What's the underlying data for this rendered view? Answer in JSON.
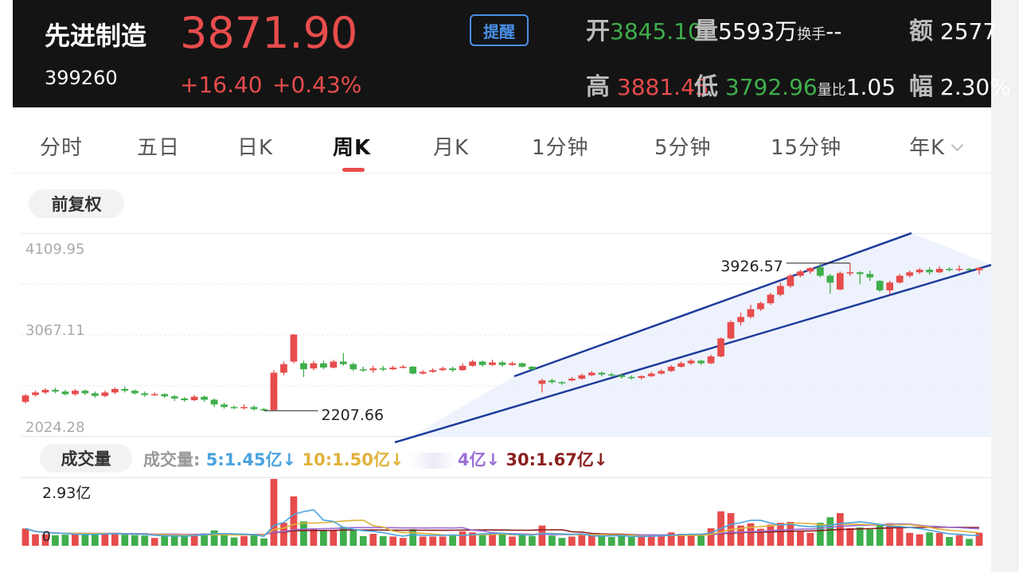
{
  "header": {
    "name": "先进制造",
    "code": "399260",
    "price": "3871.90",
    "change": "+16.40",
    "change_pct": "+0.43%",
    "alert_label": "提醒",
    "stats": {
      "open_label": "开",
      "open": "3845.10",
      "volume_label": "量",
      "volume": "5593万",
      "turnover_label": "换手",
      "turnover": "--",
      "amount_label": "额",
      "amount": "2577",
      "high_label": "高",
      "high": "3881.45",
      "low_label": "低",
      "low": "3792.96",
      "vol_ratio_label": "量比",
      "vol_ratio": "1.05",
      "amplitude_label": "幅",
      "amplitude": "2.30%"
    }
  },
  "tabs": [
    {
      "label": "分时"
    },
    {
      "label": "五日"
    },
    {
      "label": "日K"
    },
    {
      "label": "周K",
      "active": true
    },
    {
      "label": "月K"
    },
    {
      "label": "1分钟"
    },
    {
      "label": "5分钟"
    },
    {
      "label": "15分钟"
    },
    {
      "label": "年K"
    }
  ],
  "adjust_label": "前复权",
  "chart": {
    "y_max_label": "4109.95",
    "y_mid_label": "3067.11",
    "y_min_label": "2024.28",
    "high_marker": "3926.57",
    "low_marker": "2207.66"
  },
  "volume": {
    "pill_label": "成交量",
    "legend_prefix": "成交量:",
    "ma5": "5:1.45亿",
    "ma10": "10:1.50亿",
    "ma20_partial": "4亿",
    "ma30": "30:1.67亿",
    "arrow": "↓",
    "max_label": "2.93亿",
    "zero_label": "0"
  },
  "colors": {
    "up": "#e74c4c",
    "down": "#3fae4c",
    "ma5": "#4aa3df",
    "ma10": "#e0b23a",
    "ma20": "#9b6fd6",
    "ma30": "#8b1e1e",
    "channel": "#1f3c9c"
  },
  "chart_data": {
    "type": "candlestick",
    "title": "",
    "ylim": [
      2024.28,
      4109.95
    ],
    "y_ticks": [
      4109.95,
      3067.11,
      2024.28
    ],
    "annotations": [
      {
        "label": "3926.57",
        "value": 3926.57,
        "type": "high"
      },
      {
        "label": "2207.66",
        "value": 2207.66,
        "type": "low"
      }
    ],
    "series": [
      {
        "ohlc": [
          [
            2310,
            2385,
            2290,
            2400
          ],
          [
            2390,
            2420,
            2370,
            2440
          ],
          [
            2420,
            2450,
            2400,
            2470
          ],
          [
            2450,
            2430,
            2410,
            2475
          ],
          [
            2430,
            2400,
            2385,
            2450
          ],
          [
            2400,
            2440,
            2380,
            2460
          ],
          [
            2440,
            2410,
            2390,
            2455
          ],
          [
            2410,
            2380,
            2360,
            2430
          ],
          [
            2380,
            2420,
            2365,
            2440
          ],
          [
            2420,
            2460,
            2400,
            2480
          ],
          [
            2460,
            2440,
            2420,
            2490
          ],
          [
            2440,
            2410,
            2395,
            2455
          ],
          [
            2410,
            2390,
            2370,
            2430
          ],
          [
            2390,
            2400,
            2380,
            2420
          ],
          [
            2400,
            2375,
            2355,
            2410
          ],
          [
            2375,
            2350,
            2320,
            2390
          ],
          [
            2350,
            2330,
            2310,
            2365
          ],
          [
            2330,
            2370,
            2320,
            2390
          ],
          [
            2370,
            2335,
            2310,
            2385
          ],
          [
            2335,
            2280,
            2250,
            2350
          ],
          [
            2280,
            2250,
            2230,
            2300
          ],
          [
            2250,
            2240,
            2225,
            2270
          ],
          [
            2240,
            2250,
            2220,
            2280
          ],
          [
            2250,
            2225,
            2210,
            2270
          ],
          [
            2225,
            2210,
            2207.66,
            2240
          ],
          [
            2215,
            2650,
            2210,
            2680
          ],
          [
            2650,
            2750,
            2620,
            2780
          ],
          [
            2780,
            3095,
            2760,
            3100
          ],
          [
            2760,
            2690,
            2600,
            2790
          ],
          [
            2700,
            2760,
            2680,
            2790
          ],
          [
            2760,
            2710,
            2690,
            2790
          ],
          [
            2710,
            2780,
            2700,
            2800
          ],
          [
            2780,
            2750,
            2730,
            2880
          ],
          [
            2750,
            2690,
            2670,
            2770
          ],
          [
            2690,
            2680,
            2660,
            2720
          ],
          [
            2680,
            2700,
            2650,
            2730
          ],
          [
            2700,
            2690,
            2670,
            2730
          ],
          [
            2690,
            2710,
            2680,
            2730
          ],
          [
            2710,
            2720,
            2700,
            2740
          ],
          [
            2720,
            2640,
            2630,
            2730
          ],
          [
            2640,
            2660,
            2630,
            2680
          ],
          [
            2660,
            2680,
            2650,
            2700
          ],
          [
            2680,
            2700,
            2670,
            2720
          ],
          [
            2700,
            2680,
            2660,
            2720
          ],
          [
            2680,
            2730,
            2670,
            2760
          ],
          [
            2730,
            2780,
            2720,
            2800
          ],
          [
            2780,
            2740,
            2720,
            2790
          ],
          [
            2740,
            2770,
            2730,
            2800
          ],
          [
            2770,
            2740,
            2720,
            2790
          ],
          [
            2740,
            2760,
            2730,
            2780
          ],
          [
            2760,
            2720,
            2710,
            2770
          ],
          [
            2720,
            2690,
            2680,
            2730
          ],
          [
            2520,
            2560,
            2420,
            2580
          ],
          [
            2560,
            2540,
            2520,
            2580
          ],
          [
            2540,
            2530,
            2510,
            2550
          ],
          [
            2560,
            2580,
            2550,
            2600
          ],
          [
            2580,
            2620,
            2570,
            2640
          ],
          [
            2620,
            2650,
            2610,
            2670
          ],
          [
            2650,
            2630,
            2610,
            2660
          ],
          [
            2630,
            2620,
            2600,
            2650
          ],
          [
            2620,
            2600,
            2580,
            2640
          ],
          [
            2600,
            2590,
            2570,
            2620
          ],
          [
            2590,
            2610,
            2570,
            2620
          ],
          [
            2610,
            2640,
            2600,
            2660
          ],
          [
            2640,
            2670,
            2630,
            2690
          ],
          [
            2670,
            2720,
            2660,
            2740
          ],
          [
            2720,
            2760,
            2710,
            2780
          ],
          [
            2760,
            2790,
            2740,
            2810
          ],
          [
            2790,
            2760,
            2740,
            2800
          ],
          [
            2760,
            2840,
            2750,
            2860
          ],
          [
            2840,
            3050,
            2830,
            3060
          ],
          [
            3050,
            3240,
            3040,
            3260
          ],
          [
            3240,
            3300,
            3200,
            3350
          ],
          [
            3300,
            3390,
            3280,
            3440
          ],
          [
            3390,
            3460,
            3370,
            3480
          ],
          [
            3460,
            3560,
            3440,
            3580
          ],
          [
            3560,
            3660,
            3540,
            3700
          ],
          [
            3660,
            3780,
            3640,
            3800
          ],
          [
            3780,
            3830,
            3760,
            3850
          ],
          [
            3830,
            3870,
            3800,
            3880
          ],
          [
            3880,
            3780,
            3760,
            3920
          ],
          [
            3780,
            3700,
            3570,
            3800
          ],
          [
            3620,
            3810,
            3610,
            3830
          ],
          [
            3810,
            3820,
            3780,
            3926.57
          ],
          [
            3820,
            3800,
            3680,
            3830
          ],
          [
            3800,
            3760,
            3720,
            3840
          ],
          [
            3720,
            3610,
            3590,
            3730
          ],
          [
            3610,
            3700,
            3560,
            3720
          ],
          [
            3700,
            3780,
            3690,
            3800
          ],
          [
            3780,
            3820,
            3760,
            3840
          ],
          [
            3820,
            3850,
            3800,
            3870
          ],
          [
            3850,
            3820,
            3790,
            3880
          ],
          [
            3820,
            3860,
            3810,
            3890
          ],
          [
            3860,
            3850,
            3830,
            3880
          ],
          [
            3850,
            3860,
            3830,
            3900
          ],
          [
            3860,
            3850,
            3840,
            3870
          ],
          [
            3845.1,
            3871.9,
            3792.96,
            3881.45
          ]
        ]
      }
    ]
  }
}
